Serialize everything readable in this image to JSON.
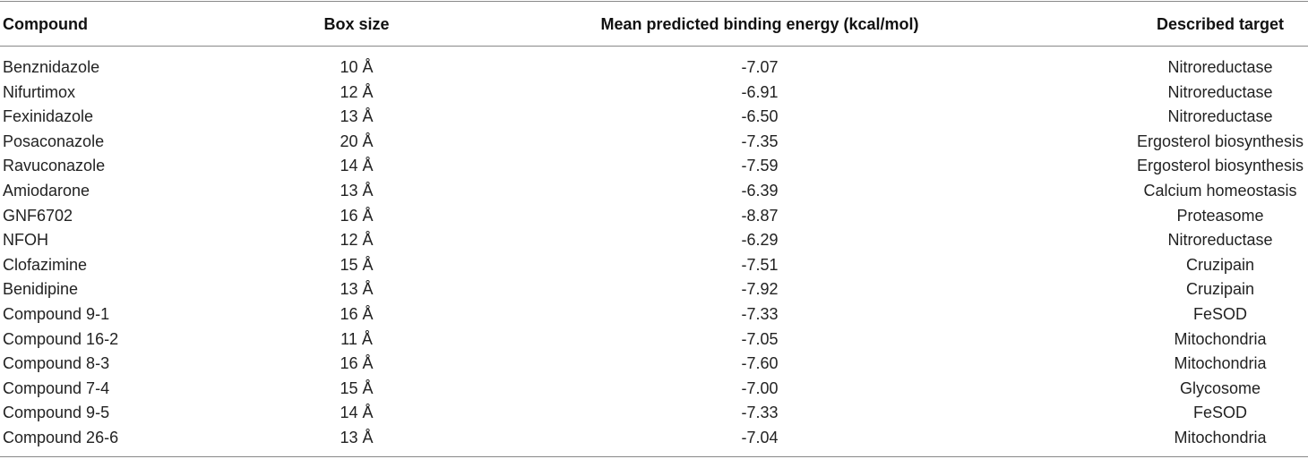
{
  "table": {
    "header": [
      "Compound",
      "Box size",
      "Mean predicted binding energy (kcal/mol)",
      "Described target"
    ],
    "rows": [
      [
        "Benznidazole",
        "10 Å",
        "-7.07",
        "Nitroreductase"
      ],
      [
        "Nifurtimox",
        "12 Å",
        "-6.91",
        "Nitroreductase"
      ],
      [
        "Fexinidazole",
        "13 Å",
        "-6.50",
        "Nitroreductase"
      ],
      [
        "Posaconazole",
        "20 Å",
        "-7.35",
        "Ergosterol biosynthesis"
      ],
      [
        "Ravuconazole",
        "14 Å",
        "-7.59",
        "Ergosterol biosynthesis"
      ],
      [
        "Amiodarone",
        "13 Å",
        "-6.39",
        "Calcium homeostasis"
      ],
      [
        "GNF6702",
        "16 Å",
        "-8.87",
        "Proteasome"
      ],
      [
        "NFOH",
        "12 Å",
        "-6.29",
        "Nitroreductase"
      ],
      [
        "Clofazimine",
        "15 Å",
        "-7.51",
        "Cruzipain"
      ],
      [
        "Benidipine",
        "13 Å",
        "-7.92",
        "Cruzipain"
      ],
      [
        "Compound 9-1",
        "16 Å",
        "-7.33",
        "FeSOD"
      ],
      [
        "Compound 16-2",
        "11 Å",
        "-7.05",
        "Mitochondria"
      ],
      [
        "Compound 8-3",
        "16 Å",
        "-7.60",
        "Mitochondria"
      ],
      [
        "Compound 7-4",
        "15 Å",
        "-7.00",
        "Glycosome"
      ],
      [
        "Compound 9-5",
        "14 Å",
        "-7.33",
        "FeSOD"
      ],
      [
        "Compound 26-6",
        "13 Å",
        "-7.04",
        "Mitochondria"
      ]
    ]
  }
}
